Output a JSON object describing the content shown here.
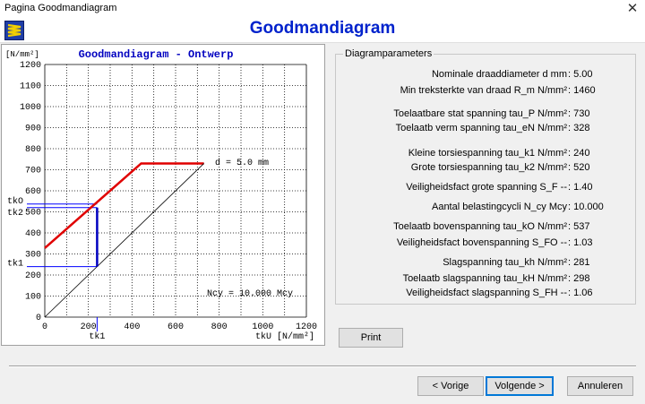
{
  "window": {
    "title": "Pagina Goodmandiagram",
    "close_glyph": "✕"
  },
  "header": {
    "title": "Goodmandiagram",
    "logo_icon": "spring-icon"
  },
  "chart_data": {
    "type": "line",
    "title": "Goodmandiagram - Ontwerp",
    "yunit": "[N/mm²]",
    "xlabel": "tkU [N/mm²]",
    "xlim": [
      0,
      1200
    ],
    "ylim": [
      0,
      1200
    ],
    "xticks": [
      0,
      200,
      400,
      600,
      800,
      1000,
      1200
    ],
    "yticks": [
      0,
      100,
      200,
      300,
      400,
      500,
      600,
      700,
      800,
      900,
      1000,
      1100,
      1200
    ],
    "grid": true,
    "series": [
      {
        "role": "upper-limit",
        "color": "#e00000",
        "x": [
          0,
          442,
          730
        ],
        "y": [
          328,
          730,
          730
        ]
      },
      {
        "role": "lower-limit",
        "color": "#000000",
        "x": [
          0,
          730
        ],
        "y": [
          0,
          730
        ]
      },
      {
        "role": "operating-stroke",
        "color": "#0000c0",
        "x": [
          240,
          240
        ],
        "y": [
          240,
          520
        ]
      }
    ],
    "guides": {
      "tk1": 240,
      "tk2": 520,
      "tkO": 537,
      "color": "#0000ff"
    },
    "axis_marks": {
      "tkO": "tkO",
      "tk2": "tk2",
      "tk1_y": "tk1",
      "tk1_x": "tk1"
    },
    "annotations": {
      "diameter": "d = 5.0  mm",
      "cycles": "Ncy = 10.000 Mcy"
    }
  },
  "params": {
    "group_title": "Diagramparameters",
    "rows": [
      {
        "label": "Nominale draaddiameter   d        mm",
        "value": ": 5.00"
      },
      {
        "label": "Min treksterkte van draad   R_m  N/mm²",
        "value": ": 1460"
      },
      {
        "label": "Toelaatbare stat spanning   tau_P  N/mm²",
        "value": ": 730"
      },
      {
        "label": "Toelaatb verm spanning   tau_eN  N/mm²",
        "value": ": 328"
      },
      {
        "label": "Kleine torsiespanning   tau_k1    N/mm²",
        "value": ": 240"
      },
      {
        "label": "Grote torsiespanning   tau_k2    N/mm²",
        "value": ": 520"
      },
      {
        "label": "Veiligheidsfact grote spanning   S_F      --",
        "value": ": 1.40"
      },
      {
        "label": "Aantal belastingcycli   N_cy      Mcy",
        "value": ": 10.000"
      },
      {
        "label": "Toelaatb bovenspanning   tau_kO  N/mm²",
        "value": ": 537"
      },
      {
        "label": "Veiligheidsfact bovenspanning   S_FO    --",
        "value": ": 1.03"
      },
      {
        "label": "Slagspanning   tau_kh    N/mm²",
        "value": ": 281"
      },
      {
        "label": "Toelaatb slagspanning   tau_kH   N/mm²",
        "value": ": 298"
      },
      {
        "label": "Veiligheidsfact slagspanning   S_FH      --",
        "value": ": 1.06"
      }
    ]
  },
  "buttons": {
    "print": "Print",
    "prev": "< Vorige",
    "next": "Volgende >",
    "cancel": "Annuleren"
  }
}
